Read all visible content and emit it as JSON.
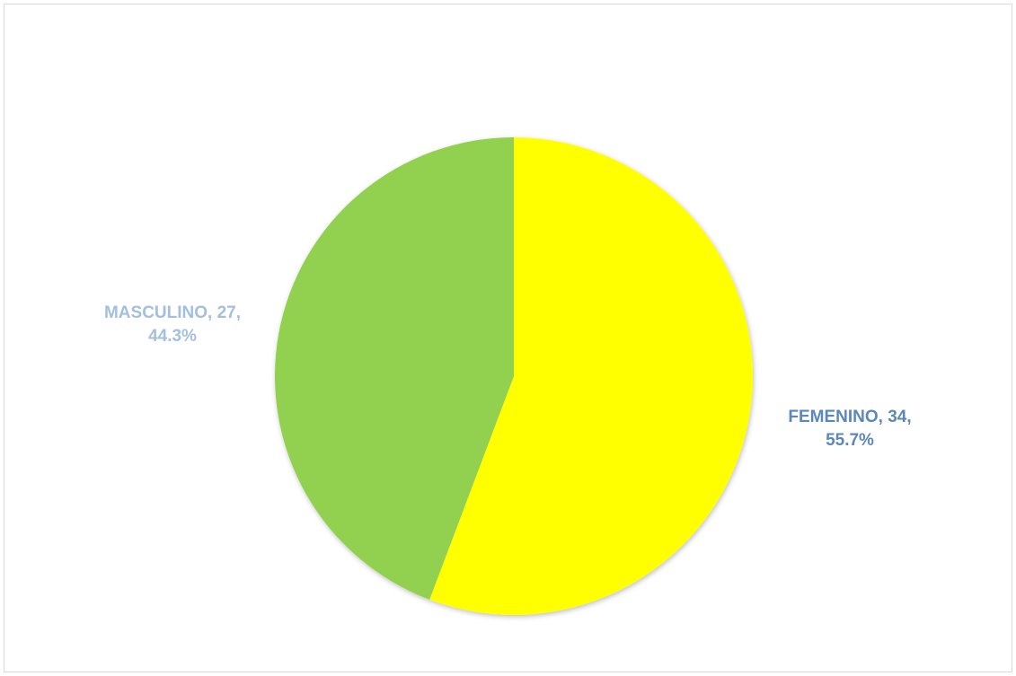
{
  "chart_data": {
    "type": "pie",
    "slices": [
      {
        "category": "FEMENINO",
        "value": 34,
        "percent": "55.7%",
        "color": "#ffff00",
        "label_color": "#5b87b9"
      },
      {
        "category": "MASCULINO",
        "value": 27,
        "percent": "44.3%",
        "color": "#92d050",
        "label_color": "#a3bfe0"
      }
    ],
    "labels": {
      "femenino_line1": "FEMENINO, 34,",
      "femenino_line2": "55.7%",
      "masculino_line1": "MASCULINO, 27,",
      "masculino_line2": "44.3%"
    },
    "start_angle": "12 o'clock",
    "direction": "clockwise",
    "legend": "none"
  }
}
